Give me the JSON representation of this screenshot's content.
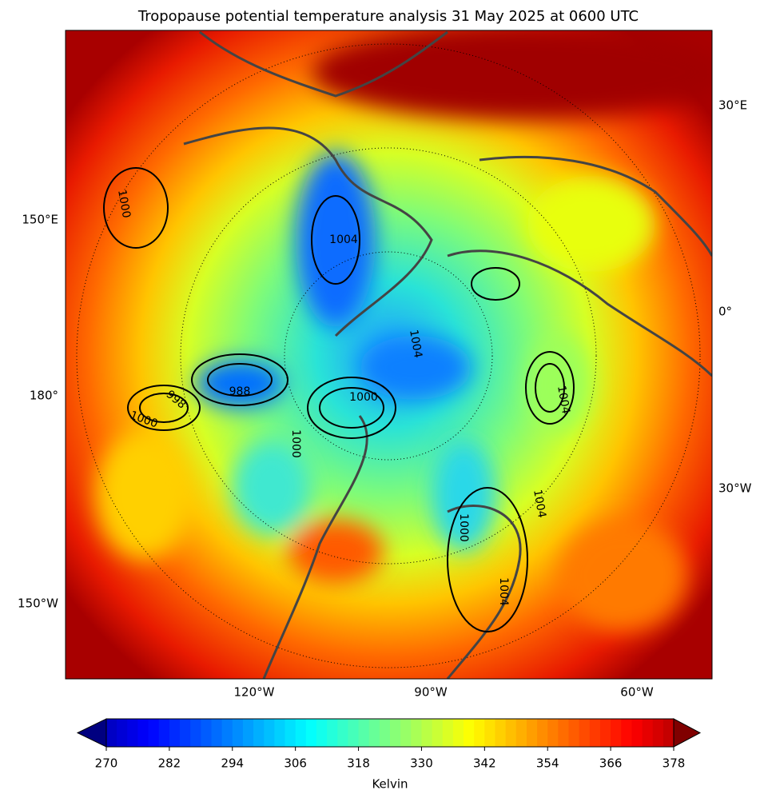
{
  "title": "Tropopause potential temperature analysis 31 May 2025 at 0600 UTC",
  "map": {
    "lon_labels_left": [
      "150°E",
      "180°",
      "150°W"
    ],
    "lon_labels_right": [
      "30°E",
      "0°",
      "30°W"
    ],
    "lon_labels_bottom": [
      "120°W",
      "90°W",
      "60°W"
    ],
    "contour_labels": [
      "1000",
      "1004",
      "1004",
      "1000",
      "998",
      "1000",
      "988",
      "1000",
      "1004",
      "1004",
      "1000",
      "1004"
    ]
  },
  "colorbar": {
    "label": "Kelvin",
    "colormap": "jet",
    "lim": [
      270,
      378
    ],
    "ticks": [
      270,
      282,
      294,
      306,
      318,
      330,
      342,
      354,
      366,
      378
    ]
  }
}
